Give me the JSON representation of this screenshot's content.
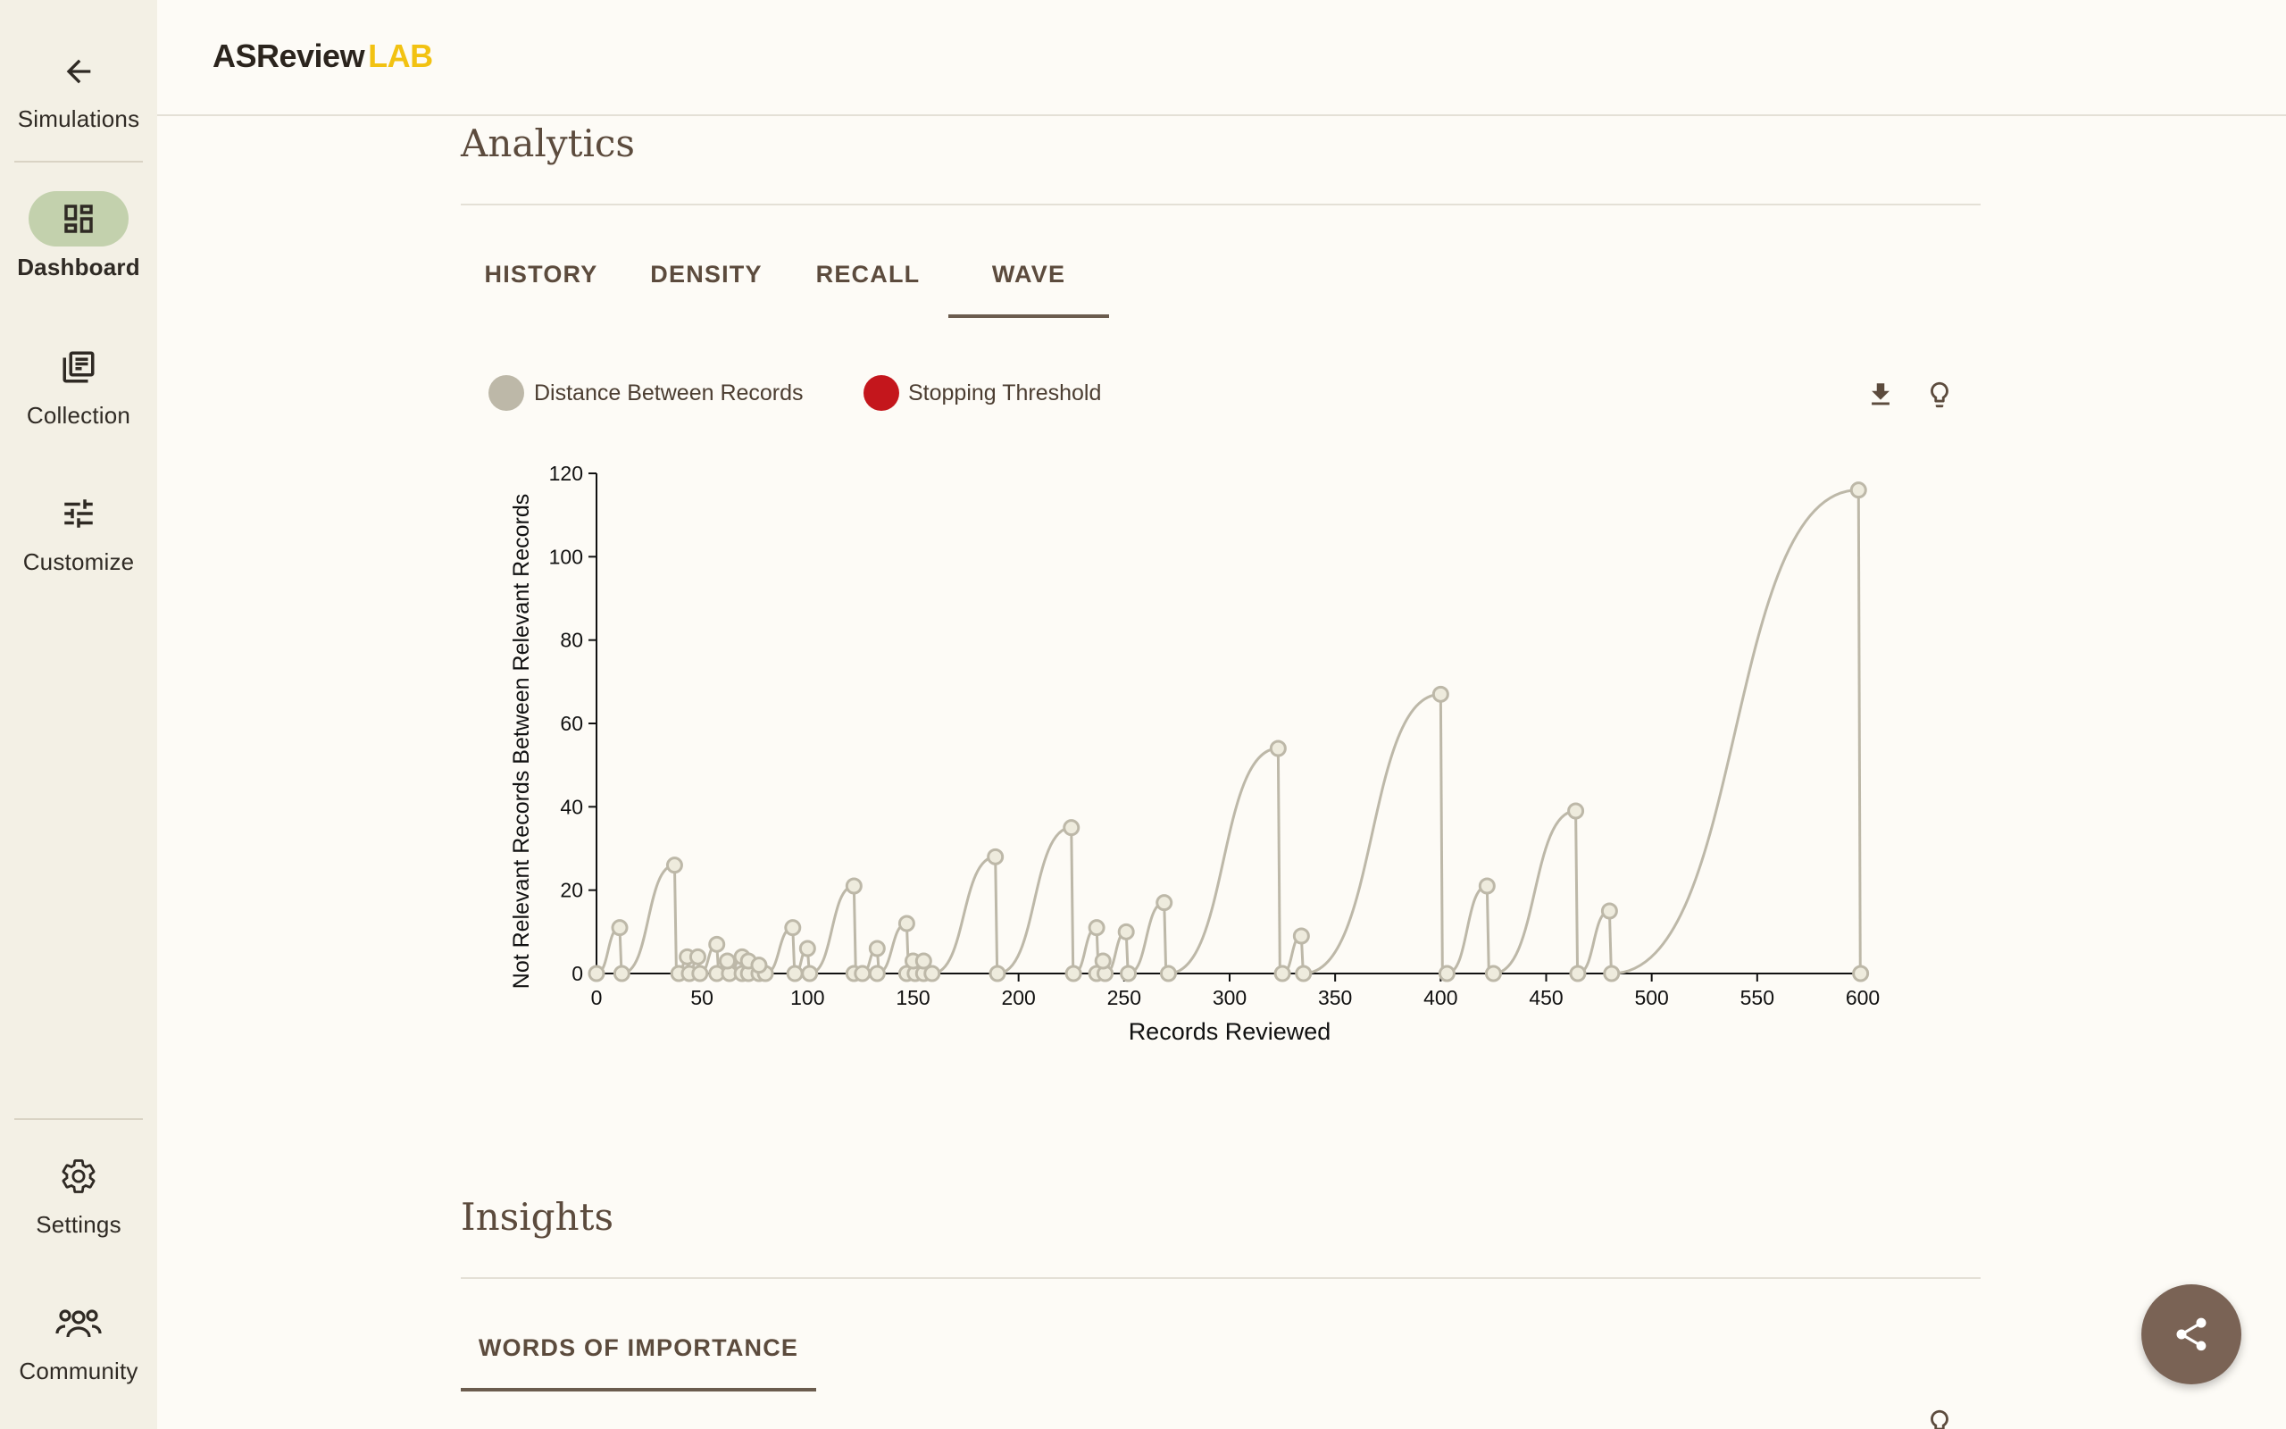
{
  "brand": {
    "name_a": "ASReview",
    "name_b": "LAB"
  },
  "sidebar": {
    "back": {
      "label": "Simulations",
      "icon": "arrow-left-icon"
    },
    "items": [
      {
        "label": "Dashboard",
        "icon": "dashboard-icon",
        "active": true
      },
      {
        "label": "Collection",
        "icon": "collection-icon",
        "active": false
      },
      {
        "label": "Customize",
        "icon": "tune-icon",
        "active": false
      }
    ],
    "bottom": [
      {
        "label": "Settings",
        "icon": "gear-icon"
      },
      {
        "label": "Community",
        "icon": "community-icon"
      }
    ]
  },
  "analytics": {
    "title": "Analytics",
    "tabs": [
      {
        "label": "HISTORY"
      },
      {
        "label": "DENSITY"
      },
      {
        "label": "RECALL"
      },
      {
        "label": "WAVE",
        "selected": true
      }
    ],
    "legend": [
      {
        "label": "Distance Between Records",
        "color": "#bdb8a8"
      },
      {
        "label": "Stopping Threshold",
        "color": "#c4161c"
      }
    ]
  },
  "insights": {
    "title": "Insights",
    "tabs": [
      {
        "label": "WORDS OF IMPORTANCE",
        "selected": true
      }
    ]
  },
  "colors": {
    "accent": "#6b5c4e",
    "point": "#bdb8a8",
    "threshold": "#c4161c",
    "fab": "#7a6355"
  },
  "chart_data": {
    "type": "line",
    "title": "",
    "xlabel": "Records Reviewed",
    "ylabel": "Not Relevant Records Between Relevant Records",
    "xlim": [
      0,
      600
    ],
    "ylim": [
      0,
      120
    ],
    "xticks": [
      0,
      50,
      100,
      150,
      200,
      250,
      300,
      350,
      400,
      450,
      500,
      550,
      600
    ],
    "yticks": [
      0,
      20,
      40,
      60,
      80,
      100,
      120
    ],
    "series": [
      {
        "name": "Distance Between Records",
        "peaks": [
          {
            "x": 11,
            "y": 11
          },
          {
            "x": 37,
            "y": 26
          },
          {
            "x": 43,
            "y": 4
          },
          {
            "x": 48,
            "y": 4
          },
          {
            "x": 57,
            "y": 7
          },
          {
            "x": 62,
            "y": 3
          },
          {
            "x": 69,
            "y": 4
          },
          {
            "x": 72,
            "y": 3
          },
          {
            "x": 77,
            "y": 2
          },
          {
            "x": 93,
            "y": 11
          },
          {
            "x": 100,
            "y": 6
          },
          {
            "x": 122,
            "y": 21
          },
          {
            "x": 133,
            "y": 6
          },
          {
            "x": 147,
            "y": 12
          },
          {
            "x": 150,
            "y": 3
          },
          {
            "x": 155,
            "y": 3
          },
          {
            "x": 189,
            "y": 28
          },
          {
            "x": 225,
            "y": 35
          },
          {
            "x": 237,
            "y": 11
          },
          {
            "x": 240,
            "y": 3
          },
          {
            "x": 251,
            "y": 10
          },
          {
            "x": 269,
            "y": 17
          },
          {
            "x": 323,
            "y": 54
          },
          {
            "x": 334,
            "y": 9
          },
          {
            "x": 400,
            "y": 67
          },
          {
            "x": 422,
            "y": 21
          },
          {
            "x": 464,
            "y": 39
          },
          {
            "x": 480,
            "y": 15
          },
          {
            "x": 598,
            "y": 116
          }
        ],
        "zeros": [
          0,
          12,
          39,
          44,
          49,
          57,
          63,
          69,
          72,
          77,
          80,
          94,
          101,
          122,
          126,
          133,
          147,
          151,
          155,
          159,
          190,
          226,
          237,
          241,
          252,
          271,
          325,
          335,
          403,
          425,
          465,
          481,
          599
        ]
      }
    ]
  }
}
